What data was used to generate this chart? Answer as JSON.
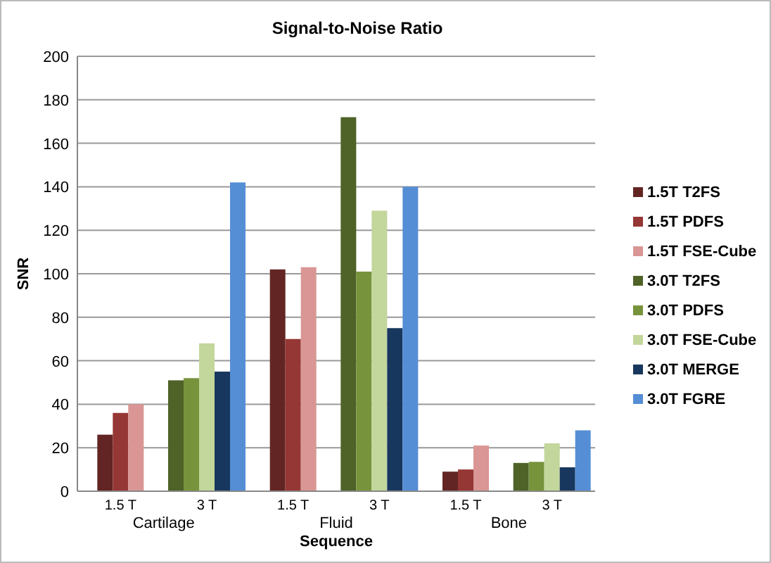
{
  "chart_data": {
    "type": "bar",
    "title": "Signal-to-Noise Ratio",
    "xlabel": "Sequence",
    "ylabel": "SNR",
    "categories": [
      "1.5 T",
      "3 T",
      "1.5 T",
      "3 T",
      "1.5 T",
      "3 T"
    ],
    "annotations": [
      "Cartilage",
      "Fluid",
      "Bone"
    ],
    "series": [
      {
        "name": "1.5T T2FS",
        "color": "#632523",
        "values": [
          26,
          null,
          102,
          null,
          9,
          null
        ]
      },
      {
        "name": "1.5T PDFS",
        "color": "#953735",
        "values": [
          36,
          null,
          70,
          null,
          10,
          null
        ]
      },
      {
        "name": "1.5T FSE-Cube",
        "color": "#d99694",
        "values": [
          40,
          null,
          103,
          null,
          21,
          null
        ]
      },
      {
        "name": "3.0T T2FS",
        "color": "#4f6228",
        "values": [
          null,
          51,
          null,
          172,
          null,
          13
        ]
      },
      {
        "name": "3.0T PDFS",
        "color": "#77933c",
        "values": [
          null,
          52,
          null,
          101,
          null,
          13.5
        ]
      },
      {
        "name": "3.0T FSE-Cube",
        "color": "#c3d69b",
        "values": [
          null,
          68,
          null,
          129,
          null,
          22
        ]
      },
      {
        "name": "3.0T MERGE",
        "color": "#17375e",
        "values": [
          null,
          55,
          null,
          75,
          null,
          11
        ]
      },
      {
        "name": "3.0T FGRE",
        "color": "#558ed5",
        "values": [
          null,
          142,
          null,
          140,
          null,
          28
        ]
      }
    ],
    "ylim": [
      0,
      200
    ],
    "yticks": [
      0,
      20,
      40,
      60,
      80,
      100,
      120,
      140,
      160,
      180,
      200
    ],
    "grid": "y",
    "legend": "right"
  }
}
